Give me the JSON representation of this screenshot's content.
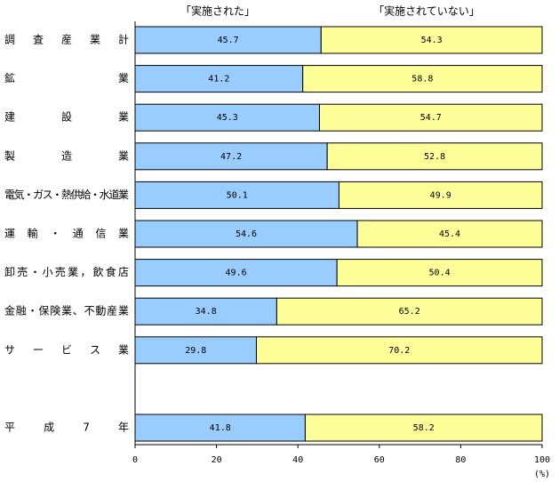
{
  "chart_data": {
    "type": "stacked-bar-horizontal",
    "categories": [
      "調査産業計",
      "鉱業",
      "建設業",
      "製造業",
      "電気・ガス・熱供給・水道業",
      "運輸・通信業",
      "卸売・小売業，飲食店",
      "金融・保険業、不動産業",
      "サービス業",
      null,
      "平成7年"
    ],
    "series": [
      {
        "name": "「実施された」",
        "color": "#99ccff",
        "values": [
          45.7,
          41.2,
          45.3,
          47.2,
          50.1,
          54.6,
          49.6,
          34.8,
          29.8,
          null,
          41.8
        ]
      },
      {
        "name": "「実施されていない」",
        "color": "#ffff99",
        "values": [
          54.3,
          58.8,
          54.7,
          52.8,
          49.9,
          45.4,
          50.4,
          65.2,
          70.2,
          null,
          58.2
        ]
      }
    ],
    "xlim": [
      0,
      100
    ],
    "xticks": [
      0,
      20,
      40,
      60,
      80,
      100
    ],
    "xlabel": "(%)"
  }
}
